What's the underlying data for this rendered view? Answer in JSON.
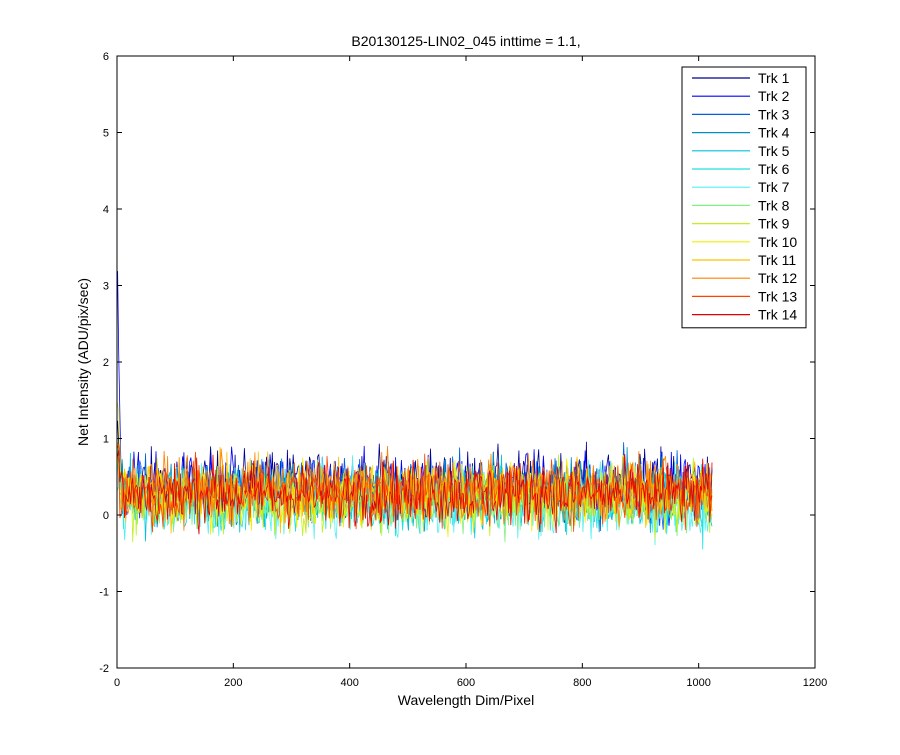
{
  "chart_data": {
    "type": "line",
    "title": "B20130125-LIN02_045 inttime = 1.1,",
    "xlabel": "Wavelength Dim/Pixel",
    "ylabel": "Net Intensity (ADU/pix/sec)",
    "xlim": [
      0,
      1200
    ],
    "ylim": [
      -2,
      6
    ],
    "xticks": [
      0,
      200,
      400,
      600,
      800,
      1000,
      1200
    ],
    "yticks": [
      -2,
      -1,
      0,
      1,
      2,
      3,
      4,
      5,
      6
    ],
    "grid": false,
    "legend_position": "top-right",
    "x_range": [
      1,
      1024
    ],
    "series": [
      {
        "name": "Trk 1",
        "color": "#00008F",
        "mean": 0.42,
        "spread": 0.3
      },
      {
        "name": "Trk 2",
        "color": "#0000FF",
        "mean": 0.38,
        "spread": 0.3
      },
      {
        "name": "Trk 3",
        "color": "#0060DF",
        "mean": 0.34,
        "spread": 0.3
      },
      {
        "name": "Trk 4",
        "color": "#0090C0",
        "mean": 0.3,
        "spread": 0.3
      },
      {
        "name": "Trk 5",
        "color": "#00C0E0",
        "mean": 0.22,
        "spread": 0.3
      },
      {
        "name": "Trk 6",
        "color": "#20E0E0",
        "mean": 0.18,
        "spread": 0.3
      },
      {
        "name": "Trk 7",
        "color": "#50F0F0",
        "mean": 0.16,
        "spread": 0.3
      },
      {
        "name": "Trk 8",
        "color": "#80F080",
        "mean": 0.18,
        "spread": 0.3
      },
      {
        "name": "Trk 9",
        "color": "#C0F020",
        "mean": 0.22,
        "spread": 0.3
      },
      {
        "name": "Trk 10",
        "color": "#F0F000",
        "mean": 0.26,
        "spread": 0.3
      },
      {
        "name": "Trk 11",
        "color": "#FFC000",
        "mean": 0.32,
        "spread": 0.3
      },
      {
        "name": "Trk 12",
        "color": "#FF8000",
        "mean": 0.34,
        "spread": 0.3
      },
      {
        "name": "Trk 13",
        "color": "#FF4000",
        "mean": 0.3,
        "spread": 0.3
      },
      {
        "name": "Trk 14",
        "color": "#E00000",
        "mean": 0.28,
        "spread": 0.3
      }
    ]
  }
}
